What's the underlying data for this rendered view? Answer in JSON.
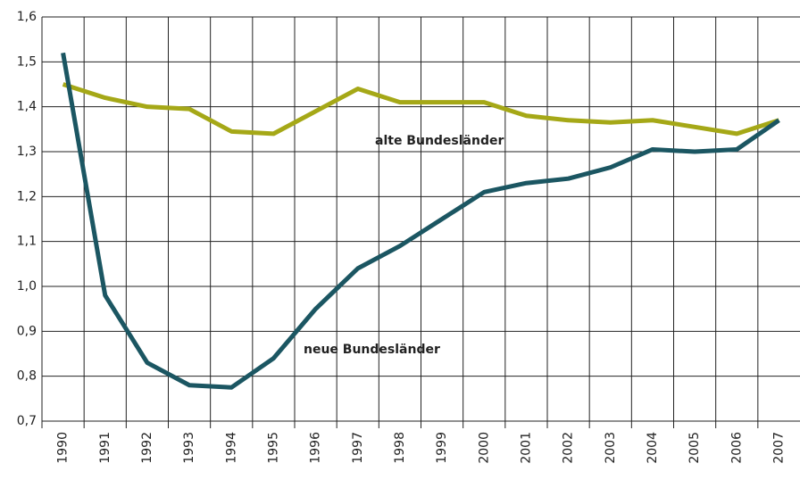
{
  "chart_data": {
    "type": "line",
    "categories": [
      "1990",
      "1991",
      "1992",
      "1993",
      "1994",
      "1995",
      "1996",
      "1997",
      "1998",
      "1999",
      "2000",
      "2001",
      "2002",
      "2003",
      "2004",
      "2005",
      "2006",
      "2007"
    ],
    "series": [
      {
        "name": "alte Bundesländer",
        "color": "#a5a817",
        "values": [
          1.45,
          1.42,
          1.4,
          1.395,
          1.345,
          1.34,
          1.39,
          1.44,
          1.41,
          1.41,
          1.41,
          1.38,
          1.37,
          1.365,
          1.37,
          1.355,
          1.34,
          1.37
        ]
      },
      {
        "name": "neue Bundesländer",
        "color": "#1b5662",
        "values": [
          1.52,
          0.98,
          0.83,
          0.78,
          0.775,
          0.84,
          0.95,
          1.04,
          1.09,
          1.15,
          1.21,
          1.23,
          1.24,
          1.265,
          1.305,
          1.3,
          1.305,
          1.37
        ]
      }
    ],
    "ylim": [
      0.7,
      1.6
    ],
    "yticks": [
      {
        "value": 0.7,
        "label": "0,7"
      },
      {
        "value": 0.8,
        "label": "0,8"
      },
      {
        "value": 0.9,
        "label": "0,9"
      },
      {
        "value": 1.0,
        "label": "1,0"
      },
      {
        "value": 1.1,
        "label": "1,1"
      },
      {
        "value": 1.2,
        "label": "1,2"
      },
      {
        "value": 1.3,
        "label": "1,3"
      },
      {
        "value": 1.4,
        "label": "1,4"
      },
      {
        "value": 1.5,
        "label": "1,5"
      },
      {
        "value": 1.6,
        "label": "1,6"
      }
    ],
    "grid": true
  }
}
